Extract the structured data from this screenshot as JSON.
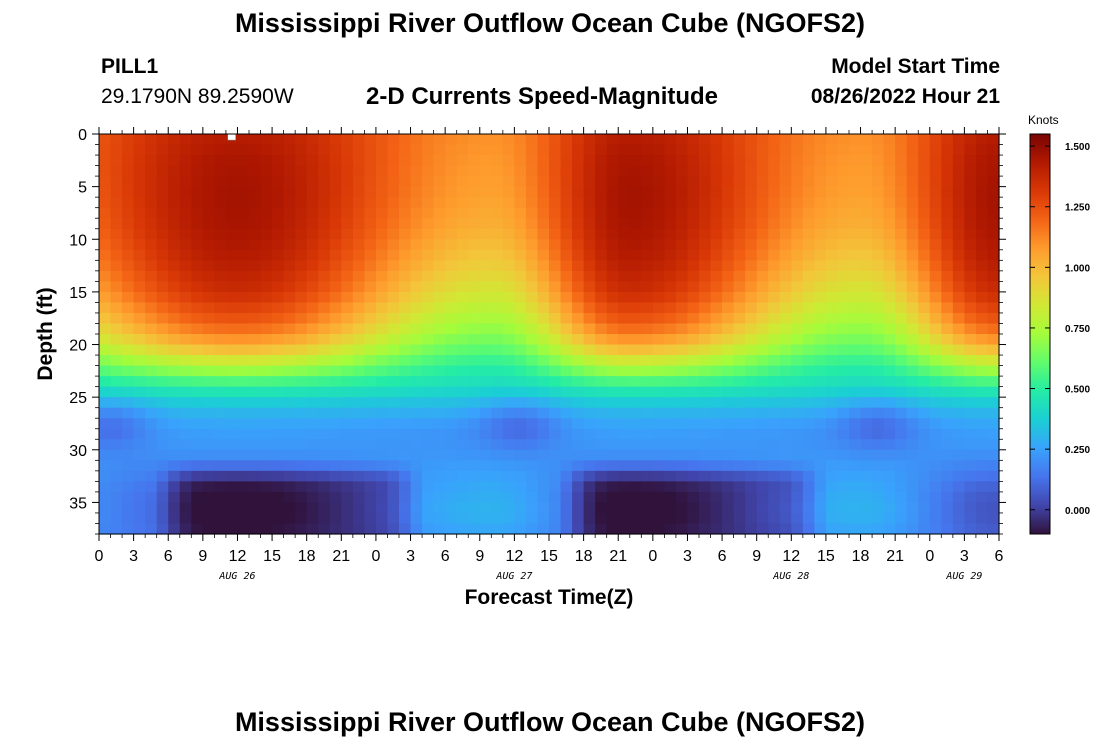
{
  "header": {
    "title": "Mississippi River Outflow Ocean Cube (NGOFS2)",
    "station_id": "PILL1",
    "coordinates": "29.1790N  89.2590W",
    "subtitle": "2-D Currents Speed-Magnitude",
    "model_start_label": "Model Start Time",
    "model_start_value": "08/26/2022 Hour 21"
  },
  "footer": {
    "title": "Mississippi River Outflow Ocean Cube (NGOFS2)"
  },
  "chart_data": {
    "type": "heatmap",
    "xlabel": "Forecast Time(Z)",
    "ylabel": "Depth (ft)",
    "x_unit": "hours",
    "x_range": [
      0,
      78
    ],
    "x_tick_values": [
      0,
      3,
      6,
      9,
      12,
      15,
      18,
      21,
      24,
      27,
      30,
      33,
      36,
      39,
      42,
      45,
      48,
      51,
      54,
      57,
      60,
      63,
      66,
      69,
      72,
      75,
      78
    ],
    "x_tick_labels": [
      "0",
      "3",
      "6",
      "9",
      "12",
      "15",
      "18",
      "21",
      "0",
      "3",
      "6",
      "9",
      "12",
      "15",
      "18",
      "21",
      "0",
      "3",
      "6",
      "9",
      "12",
      "15",
      "18",
      "21",
      "0",
      "3",
      "6"
    ],
    "date_labels": [
      {
        "text": "AUG 26",
        "at_hour": 12
      },
      {
        "text": "AUG 27",
        "at_hour": 36
      },
      {
        "text": "AUG 28",
        "at_hour": 60
      },
      {
        "text": "AUG 29",
        "at_hour": 75
      }
    ],
    "y_range": [
      0,
      38
    ],
    "y_ticks": [
      0,
      5,
      10,
      15,
      20,
      25,
      30,
      35
    ],
    "colorbar": {
      "title": "Knots",
      "range": [
        -0.1,
        1.55
      ],
      "ticks": [
        0.0,
        0.25,
        0.5,
        0.75,
        1.0,
        1.25,
        1.5
      ],
      "tick_labels": [
        "0.000",
        "0.250",
        "0.500",
        "0.750",
        "1.000",
        "1.250",
        "1.500"
      ],
      "colormap": [
        "#30123b",
        "#4145ab",
        "#4675ed",
        "#39a2fc",
        "#1bcfd4",
        "#24eca6",
        "#61fc6c",
        "#a4fc3b",
        "#d1e834",
        "#f3c63a",
        "#fe9b2d",
        "#f36315",
        "#d93806",
        "#b11901",
        "#7a0402"
      ]
    },
    "profile_depths_ft": [
      0,
      3,
      6,
      9,
      12,
      15,
      18,
      20,
      22,
      24,
      26,
      28,
      30,
      32,
      34,
      36,
      38
    ],
    "speed_at_surface_peak": [
      1.42,
      1.45,
      1.46,
      1.45,
      1.42,
      1.36,
      1.22,
      1.05,
      0.78,
      0.5,
      0.32,
      0.25,
      0.22,
      0.15,
      0.07,
      0.05,
      0.08
    ],
    "speed_at_surface_trough": [
      1.1,
      1.08,
      1.06,
      1.02,
      0.95,
      0.85,
      0.72,
      0.62,
      0.5,
      0.42,
      0.3,
      0.22,
      0.22,
      0.25,
      0.28,
      0.3,
      0.26
    ],
    "tidal_pattern": {
      "peak_hours": [
        12,
        46,
        78
      ],
      "trough_hours": [
        34,
        66
      ],
      "deep_minimum_hours": [
        [
          6,
          27
        ],
        [
          41,
          62
        ]
      ],
      "mid_depth_minimum_hours": [
        [
          0,
          2
        ],
        [
          34,
          39
        ],
        [
          65,
          70
        ]
      ]
    },
    "marker": {
      "hour": 11.5,
      "depth_ft": 0.2
    }
  }
}
